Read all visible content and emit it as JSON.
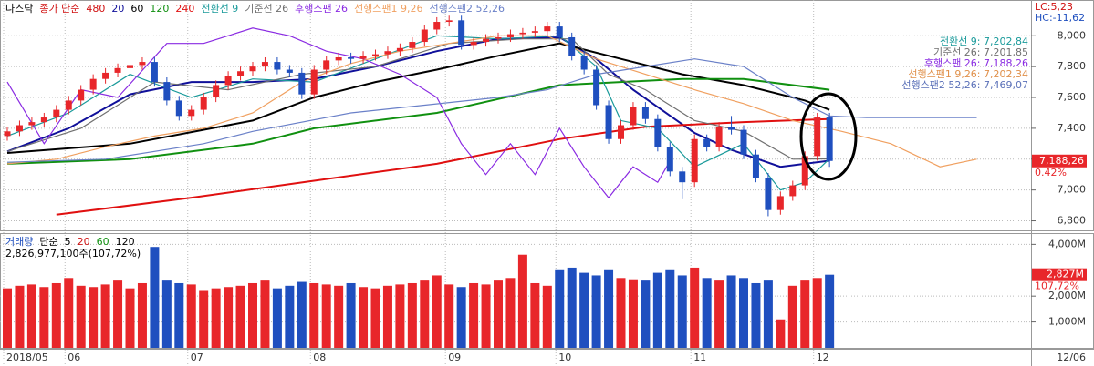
{
  "chart_data": [
    {
      "type": "candlestick",
      "legend": [
        {
          "text": "나스닥",
          "color": "#000000"
        },
        {
          "text": "종가 단순",
          "color": "#d01010"
        },
        {
          "text": "480",
          "color": "#d01010"
        }
      ],
      "info": [
        {
          "text": "LC:5,23",
          "color": "#d01010"
        },
        {
          "text": "HC:-11,62",
          "color": "#1f4fbf"
        }
      ],
      "ichimoku_values": [
        {
          "text": "전환선 9: 7,202,84",
          "color": "#1a9a9a"
        },
        {
          "text": "기준선 26: 7,201,85",
          "color": "#707070"
        },
        {
          "text": "후행스팬 26: 7,188,26",
          "color": "#8a2be2"
        },
        {
          "text": "선행스팬1 9,26: 7,202,34",
          "color": "#e0904a"
        },
        {
          "text": "선행스팬2 52,26: 7,469,07",
          "color": "#5a70b8"
        }
      ],
      "categories": [
        "2018/05",
        null,
        null,
        null,
        null,
        "06",
        null,
        null,
        null,
        null,
        null,
        null,
        null,
        null,
        null,
        "07",
        null,
        null,
        null,
        null,
        null,
        null,
        null,
        null,
        null,
        "08",
        null,
        null,
        null,
        null,
        null,
        null,
        null,
        null,
        null,
        null,
        "09",
        null,
        null,
        null,
        null,
        null,
        null,
        null,
        null,
        "10",
        null,
        null,
        null,
        null,
        null,
        null,
        null,
        null,
        null,
        null,
        "11",
        null,
        null,
        null,
        null,
        null,
        null,
        null,
        null,
        null,
        "12",
        null
      ],
      "x_end_label": "12/06",
      "open": [
        7350,
        7380,
        7420,
        7440,
        7470,
        7520,
        7580,
        7650,
        7720,
        7760,
        7790,
        7810,
        7830,
        7700,
        7580,
        7480,
        7520,
        7600,
        7680,
        7740,
        7770,
        7800,
        7830,
        7780,
        7760,
        7620,
        7780,
        7840,
        7860,
        7850,
        7870,
        7880,
        7900,
        7920,
        7960,
        8040,
        8090,
        8100,
        7940,
        7960,
        7980,
        7990,
        8010,
        8020,
        8030,
        8060,
        7990,
        7870,
        7780,
        7550,
        7330,
        7420,
        7540,
        7460,
        7280,
        7120,
        7050,
        7330,
        7280,
        7410,
        7390,
        7230,
        7080,
        6870,
        6960,
        7030,
        7220,
        7470
      ],
      "high": [
        7410,
        7450,
        7470,
        7500,
        7550,
        7610,
        7680,
        7750,
        7790,
        7820,
        7840,
        7860,
        7860,
        7730,
        7610,
        7550,
        7630,
        7710,
        7770,
        7800,
        7830,
        7860,
        7860,
        7810,
        7790,
        7810,
        7870,
        7890,
        7890,
        7900,
        7910,
        7930,
        7950,
        7990,
        8070,
        8120,
        8130,
        8130,
        7990,
        8010,
        8020,
        8040,
        8050,
        8060,
        8090,
        8090,
        8020,
        7900,
        7810,
        7580,
        7450,
        7570,
        7570,
        7490,
        7310,
        7150,
        7360,
        7360,
        7440,
        7480,
        7420,
        7260,
        7110,
        6990,
        7060,
        7250,
        7500,
        7500
      ],
      "low": [
        7320,
        7350,
        7390,
        7410,
        7440,
        7490,
        7550,
        7620,
        7690,
        7730,
        7760,
        7780,
        7670,
        7550,
        7450,
        7450,
        7490,
        7570,
        7650,
        7710,
        7740,
        7770,
        7750,
        7730,
        7590,
        7590,
        7750,
        7810,
        7820,
        7820,
        7840,
        7850,
        7870,
        7890,
        7930,
        8010,
        8060,
        7910,
        7910,
        7930,
        7950,
        7960,
        7980,
        7990,
        8000,
        7960,
        7840,
        7750,
        7520,
        7300,
        7300,
        7390,
        7430,
        7250,
        7090,
        6940,
        7020,
        7250,
        7250,
        7360,
        7200,
        7050,
        6830,
        6840,
        6930,
        7000,
        7190,
        7150
      ],
      "close": [
        7380,
        7420,
        7440,
        7470,
        7520,
        7580,
        7650,
        7720,
        7760,
        7790,
        7810,
        7830,
        7700,
        7580,
        7480,
        7520,
        7600,
        7680,
        7740,
        7770,
        7800,
        7830,
        7780,
        7760,
        7620,
        7780,
        7840,
        7860,
        7850,
        7870,
        7880,
        7900,
        7920,
        7960,
        8040,
        8090,
        8100,
        7940,
        7960,
        7980,
        7990,
        8010,
        8020,
        8030,
        8060,
        7990,
        7870,
        7780,
        7550,
        7330,
        7420,
        7540,
        7460,
        7280,
        7120,
        7050,
        7330,
        7280,
        7410,
        7390,
        7230,
        7080,
        6870,
        6960,
        7030,
        7220,
        7470,
        7188.26
      ],
      "up_color": "#e8262a",
      "down_color": "#1f4fbf",
      "last_label": "7,188,26",
      "change_label": "0.42%",
      "ylim": [
        6750,
        8220
      ],
      "yticks": [
        {
          "value": 6800,
          "label": "6,800"
        },
        {
          "value": 7000,
          "label": "7,000"
        },
        {
          "value": 7200,
          "label": "7,200"
        },
        {
          "value": 7400,
          "label": "7,400"
        },
        {
          "value": 7600,
          "label": "7,600"
        },
        {
          "value": 7800,
          "label": "7,800"
        },
        {
          "value": 8000,
          "label": "8,000"
        }
      ],
      "grid": true,
      "series": [
        {
          "name": "20",
          "color": "#10109a",
          "x": [
            0,
            5,
            10,
            15,
            20,
            25,
            30,
            35,
            40,
            45,
            48,
            51,
            56,
            59,
            63,
            67
          ],
          "values": [
            7250,
            7400,
            7620,
            7700,
            7700,
            7720,
            7800,
            7900,
            7980,
            7990,
            7850,
            7650,
            7370,
            7260,
            7150,
            7190
          ]
        },
        {
          "name": "60",
          "color": "#000000",
          "x": [
            0,
            10,
            20,
            25,
            30,
            35,
            40,
            45,
            50,
            55,
            60,
            65,
            67
          ],
          "values": [
            7240,
            7300,
            7450,
            7600,
            7700,
            7780,
            7870,
            7950,
            7850,
            7750,
            7680,
            7580,
            7520
          ]
        },
        {
          "name": "120",
          "color": "#109010",
          "x": [
            0,
            10,
            20,
            25,
            35,
            45,
            55,
            60,
            67
          ],
          "values": [
            7170,
            7200,
            7300,
            7400,
            7500,
            7680,
            7720,
            7720,
            7650
          ]
        },
        {
          "name": "240",
          "color": "#e01010",
          "x": [
            4,
            15,
            25,
            35,
            45,
            52,
            60,
            67
          ],
          "values": [
            6840,
            6950,
            7060,
            7170,
            7330,
            7410,
            7440,
            7460
          ]
        },
        {
          "name": "전환선 9",
          "color": "#1a9a9a",
          "x": [
            0,
            5,
            10,
            15,
            20,
            25,
            30,
            35,
            40,
            45,
            48,
            50,
            53,
            56,
            60,
            63,
            65,
            67
          ],
          "values": [
            7350,
            7500,
            7750,
            7600,
            7720,
            7700,
            7850,
            8000,
            7980,
            8000,
            7800,
            7450,
            7400,
            7150,
            7300,
            7000,
            7050,
            7202.84
          ]
        },
        {
          "name": "기준선 26",
          "color": "#707070",
          "x": [
            0,
            6,
            12,
            18,
            24,
            30,
            36,
            42,
            46,
            49,
            52,
            56,
            60,
            64,
            67
          ],
          "values": [
            7250,
            7400,
            7700,
            7650,
            7750,
            7800,
            7950,
            7980,
            7980,
            7750,
            7650,
            7450,
            7380,
            7200,
            7201.85
          ]
        },
        {
          "name": "후행스팬 26",
          "color": "#8a2be2",
          "x": [
            0,
            3,
            6,
            9,
            13,
            16,
            20,
            23,
            26,
            29,
            32,
            35,
            37,
            39,
            41,
            43,
            45,
            47,
            49,
            51,
            53,
            54
          ],
          "values": [
            7700,
            7300,
            7650,
            7600,
            7950,
            7950,
            8050,
            8000,
            7900,
            7850,
            7750,
            7600,
            7300,
            7100,
            7300,
            7100,
            7400,
            7150,
            6950,
            7150,
            7050,
            7188.26
          ]
        },
        {
          "name": "선행스팬1 9,26",
          "color": "#f0a060",
          "x": [
            0,
            4,
            8,
            12,
            16,
            20,
            24,
            28,
            32,
            36,
            40,
            44,
            48,
            52,
            56,
            60,
            64,
            68,
            72,
            76,
            79
          ],
          "values": [
            7170,
            7200,
            7280,
            7350,
            7400,
            7500,
            7700,
            7820,
            7900,
            7950,
            8000,
            8000,
            7850,
            7750,
            7650,
            7560,
            7450,
            7380,
            7300,
            7150,
            7200
          ]
        },
        {
          "name": "선행스팬2 52,26",
          "color": "#6a80c8",
          "x": [
            0,
            8,
            16,
            20,
            28,
            34,
            40,
            44,
            48,
            52,
            56,
            60,
            62,
            64,
            67,
            70,
            79
          ],
          "values": [
            7180,
            7200,
            7300,
            7380,
            7500,
            7550,
            7600,
            7650,
            7750,
            7800,
            7850,
            7800,
            7700,
            7600,
            7480,
            7469.07,
            7469.07
          ]
        }
      ]
    },
    {
      "type": "bar",
      "legend": [
        {
          "text": "거래량",
          "color": "#1f4fbf"
        },
        {
          "text": "단순",
          "color": "#000000"
        },
        {
          "text": "5",
          "color": "#000000"
        },
        {
          "text": "20",
          "color": "#d01010"
        },
        {
          "text": "60",
          "color": "#109010"
        },
        {
          "text": "120",
          "color": "#000000"
        }
      ],
      "subtitle": "2,826,977,100주(107,72%)",
      "values": [
        2300,
        2400,
        2450,
        2350,
        2500,
        2700,
        2400,
        2350,
        2450,
        2600,
        2300,
        2500,
        3900,
        2600,
        2500,
        2450,
        2200,
        2300,
        2350,
        2400,
        2500,
        2600,
        2300,
        2400,
        2550,
        2500,
        2450,
        2400,
        2500,
        2350,
        2300,
        2400,
        2450,
        2500,
        2600,
        2800,
        2450,
        2350,
        2500,
        2450,
        2600,
        2700,
        3600,
        2500,
        2400,
        3000,
        3100,
        2900,
        2800,
        3000,
        2700,
        2650,
        2600,
        2900,
        3000,
        2800,
        3100,
        2700,
        2600,
        2800,
        2700,
        2500,
        2600,
        1100,
        2400,
        2600,
        2700,
        2827
      ],
      "last_label": "2,827M",
      "ratio_label": "107,72%",
      "ylim": [
        0,
        4400
      ],
      "yticks": [
        {
          "value": 1000,
          "label": "1,000M"
        },
        {
          "value": 2000,
          "label": "2,000M"
        },
        {
          "value": 4000,
          "label": "4,000M"
        }
      ],
      "grid": true
    }
  ]
}
